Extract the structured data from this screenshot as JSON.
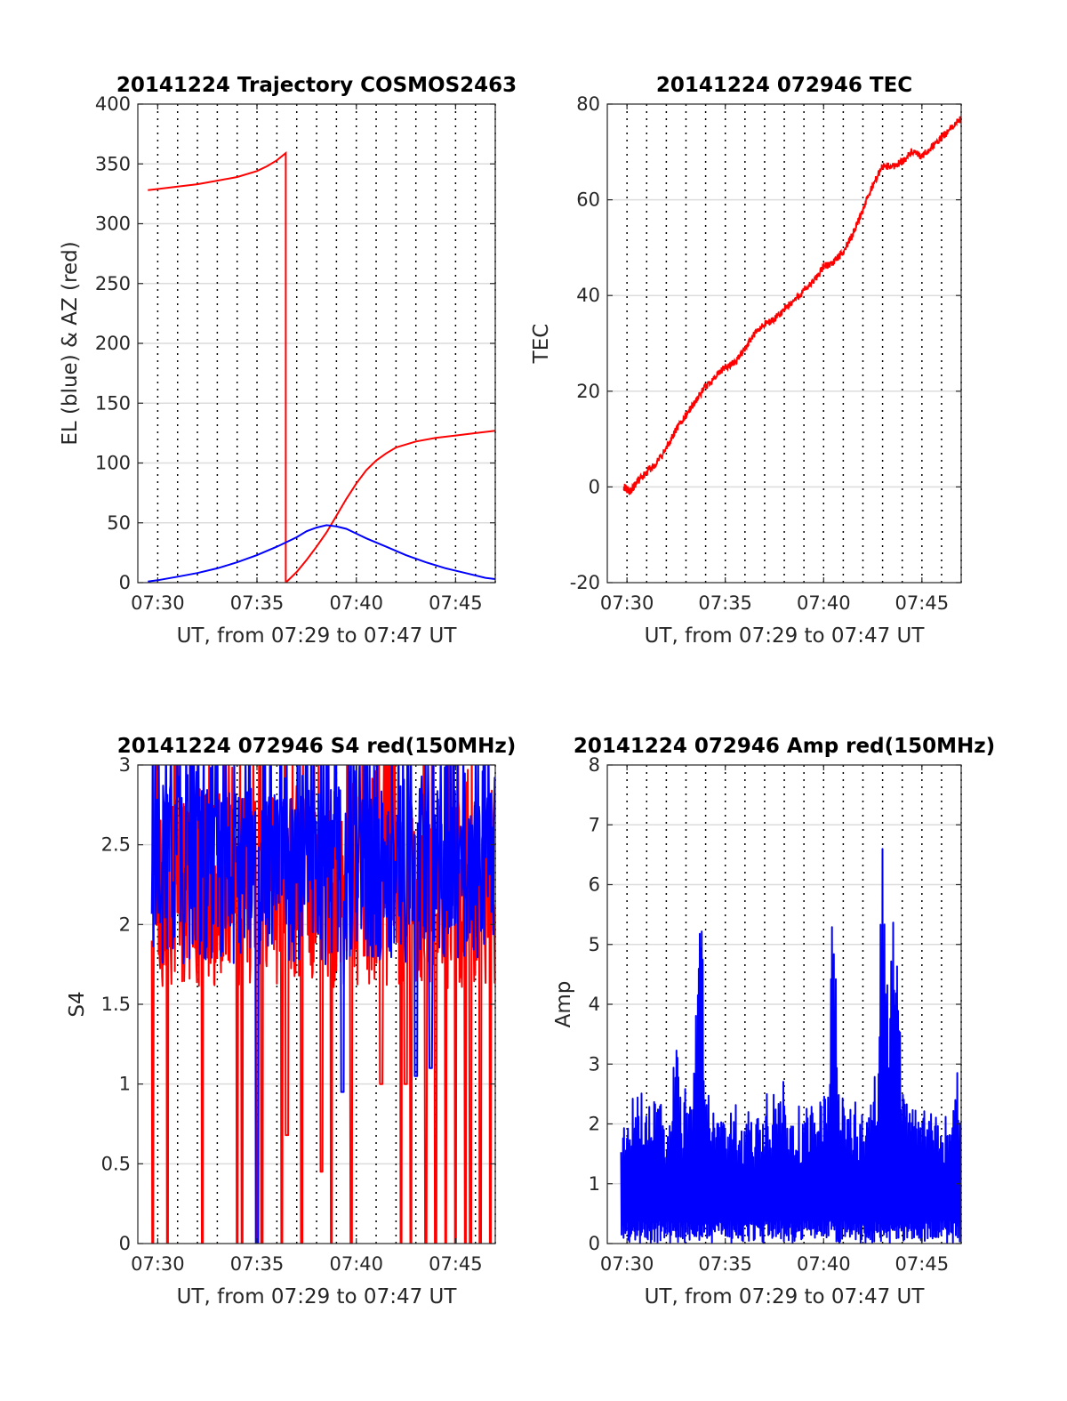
{
  "colors": {
    "red": "#ff0000",
    "blue": "#0000ff",
    "axis": "#262626",
    "grid": "#dcdcdc"
  },
  "chart_data": [
    {
      "type": "line",
      "title": "20141224 Trajectory COSMOS2463",
      "xlabel": "UT, from 07:29 to 07:47 UT",
      "ylabel": "EL (blue) & AZ (red)",
      "x_ticks": [
        7.5,
        7.5833,
        7.6667,
        7.75
      ],
      "x_tick_labels": [
        "07:30",
        "07:35",
        "07:40",
        "07:45"
      ],
      "xlim": [
        7.4833,
        7.7833
      ],
      "ylim": [
        0,
        400
      ],
      "y_ticks": [
        0,
        50,
        100,
        150,
        200,
        250,
        300,
        350,
        400
      ],
      "grid": "on",
      "series": [
        {
          "color": "red",
          "x": [
            7.4917,
            7.5,
            7.5167,
            7.5333,
            7.55,
            7.5667,
            7.5833,
            7.5917,
            7.6,
            7.6075,
            7.6075,
            7.6167,
            7.625,
            7.6333,
            7.6417,
            7.65,
            7.6583,
            7.6667,
            7.675,
            7.6833,
            7.6917,
            7.7,
            7.7167,
            7.7333,
            7.75,
            7.7667,
            7.7833
          ],
          "values": [
            328,
            329,
            331,
            333,
            336,
            339,
            344,
            348,
            353,
            359,
            0,
            9,
            19,
            30,
            42,
            56,
            70,
            83,
            94,
            102,
            108,
            113,
            118,
            121,
            123,
            125,
            127
          ]
        },
        {
          "color": "blue",
          "x": [
            7.4917,
            7.5,
            7.5167,
            7.5333,
            7.55,
            7.5667,
            7.5833,
            7.6,
            7.6167,
            7.625,
            7.6333,
            7.6417,
            7.65,
            7.6583,
            7.6667,
            7.675,
            7.6917,
            7.7083,
            7.725,
            7.7417,
            7.7583,
            7.775,
            7.7833
          ],
          "values": [
            1,
            2,
            5,
            8,
            12,
            17,
            23,
            30,
            38,
            43,
            46,
            48,
            47,
            45,
            41,
            37,
            30,
            23,
            17,
            12,
            8,
            4,
            3
          ]
        }
      ]
    },
    {
      "type": "line",
      "title": "20141224 072946 TEC",
      "xlabel": "UT, from 07:29 to 07:47 UT",
      "ylabel": "TEC",
      "x_ticks": [
        7.5,
        7.5833,
        7.6667,
        7.75
      ],
      "x_tick_labels": [
        "07:30",
        "07:35",
        "07:40",
        "07:45"
      ],
      "xlim": [
        7.4833,
        7.7833
      ],
      "ylim": [
        -20,
        80
      ],
      "y_ticks": [
        -20,
        0,
        20,
        40,
        60,
        80
      ],
      "grid": "on",
      "series": [
        {
          "color": "red",
          "x": [
            7.4972,
            7.5,
            7.5028,
            7.5056,
            7.5083,
            7.5167,
            7.525,
            7.5333,
            7.5417,
            7.55,
            7.5583,
            7.5667,
            7.575,
            7.5833,
            7.5917,
            7.6,
            7.6083,
            7.6167,
            7.625,
            7.6333,
            7.6417,
            7.65,
            7.6583,
            7.6667,
            7.675,
            7.6833,
            7.6917,
            7.7,
            7.7083,
            7.7167,
            7.725,
            7.7333,
            7.7417,
            7.75,
            7.7583,
            7.7667,
            7.775,
            7.7833
          ],
          "values": [
            0,
            -0.5,
            -1,
            0,
            1,
            3,
            5,
            8,
            12,
            15,
            18,
            21,
            23,
            25,
            26,
            29,
            32,
            34,
            35,
            37,
            39,
            41,
            43,
            46,
            47,
            49,
            53,
            58,
            63,
            67,
            67,
            68,
            70,
            69,
            71,
            73,
            75,
            77
          ]
        }
      ]
    },
    {
      "type": "line",
      "title": "20141224 072946 S4 red(150MHz)",
      "xlabel": "UT, from 07:29 to 07:47 UT",
      "ylabel": "S4",
      "x_ticks": [
        7.5,
        7.5833,
        7.6667,
        7.75
      ],
      "x_tick_labels": [
        "07:30",
        "07:35",
        "07:40",
        "07:45"
      ],
      "xlim": [
        7.4833,
        7.7833
      ],
      "ylim": [
        0,
        3
      ],
      "y_ticks": [
        0,
        0.5,
        1,
        1.5,
        2,
        2.5,
        3
      ],
      "grid": "on",
      "series": [
        {
          "color": "red",
          "noisy": true,
          "x_start": 7.495,
          "x_end": 7.7833,
          "base": 2.2,
          "spread": 0.6,
          "drops_to_zero": [
            7.4958,
            7.5083,
            7.5375,
            7.5667,
            7.5708,
            7.5833,
            7.5875,
            7.6042,
            7.6208,
            7.6458,
            7.6625,
            7.6875,
            7.7042,
            7.7125,
            7.725,
            7.7333,
            7.7417,
            7.75,
            7.7583,
            7.7625,
            7.7708,
            7.7792
          ],
          "dips": [
            [
              7.6083,
              0.68
            ],
            [
              7.6375,
              0.45
            ],
            [
              7.6875,
              1.0
            ],
            [
              7.7083,
              1.0
            ]
          ]
        },
        {
          "color": "blue",
          "noisy": true,
          "x_start": 7.495,
          "x_end": 7.7833,
          "base": 2.3,
          "spread": 0.55,
          "dips": [
            [
              7.5833,
              0.0
            ],
            [
              7.655,
              0.95
            ],
            [
              7.7167,
              1.05
            ],
            [
              7.7292,
              1.1
            ]
          ]
        }
      ]
    },
    {
      "type": "line",
      "title": "20141224 072946 Amp red(150MHz)",
      "xlabel": "UT, from 07:29 to 07:47 UT",
      "ylabel": "Amp",
      "x_ticks": [
        7.5,
        7.5833,
        7.6667,
        7.75
      ],
      "x_tick_labels": [
        "07:30",
        "07:35",
        "07:40",
        "07:45"
      ],
      "xlim": [
        7.4833,
        7.7833
      ],
      "ylim": [
        0,
        8
      ],
      "y_ticks": [
        0,
        1,
        2,
        3,
        4,
        5,
        6,
        7,
        8
      ],
      "grid": "on",
      "series": [
        {
          "color": "blue",
          "noisy": true,
          "x_start": 7.495,
          "x_end": 7.7833,
          "base": 2.0,
          "spread": 1.0,
          "peaks": [
            [
              7.5417,
              3.7
            ],
            [
              7.5583,
              3.9
            ],
            [
              7.5625,
              5.6
            ],
            [
              7.6333,
              3.1
            ],
            [
              7.675,
              5.7
            ],
            [
              7.7167,
              6.8
            ],
            [
              7.7208,
              4.8
            ],
            [
              7.725,
              5.6
            ],
            [
              7.7292,
              5.1
            ],
            [
              7.7792,
              3.2
            ]
          ]
        }
      ]
    }
  ]
}
